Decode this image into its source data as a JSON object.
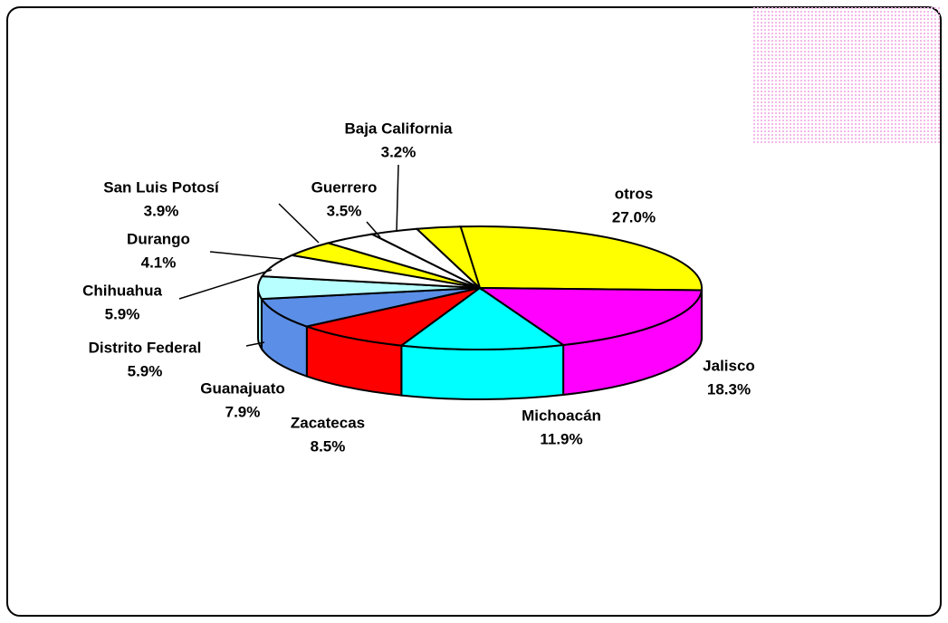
{
  "chart_data": {
    "type": "pie",
    "categories": [
      "otros",
      "Jalisco",
      "Michoacán",
      "Zacatecas",
      "Guanajuato",
      "Distrito Federal",
      "Chihuahua",
      "Durango",
      "San Luis Potosí",
      "Guerrero",
      "Baja California"
    ],
    "values": [
      27.0,
      18.3,
      11.9,
      8.5,
      7.9,
      5.9,
      5.9,
      4.1,
      3.9,
      3.5,
      3.2
    ],
    "value_labels": [
      "27.0%",
      "18.3%",
      "11.9%",
      "8.5%",
      "7.9%",
      "5.9%",
      "5.9%",
      "4.1%",
      "3.9%",
      "3.5%",
      "3.2%"
    ],
    "colors": [
      "#ffff00",
      "#ff00ff",
      "#00ffff",
      "#ff0000",
      "#5b8ee6",
      "#b8ffff",
      "#ffffff",
      "#ffff00",
      "#ffffff",
      "#ffffff",
      "#ffff00"
    ]
  }
}
